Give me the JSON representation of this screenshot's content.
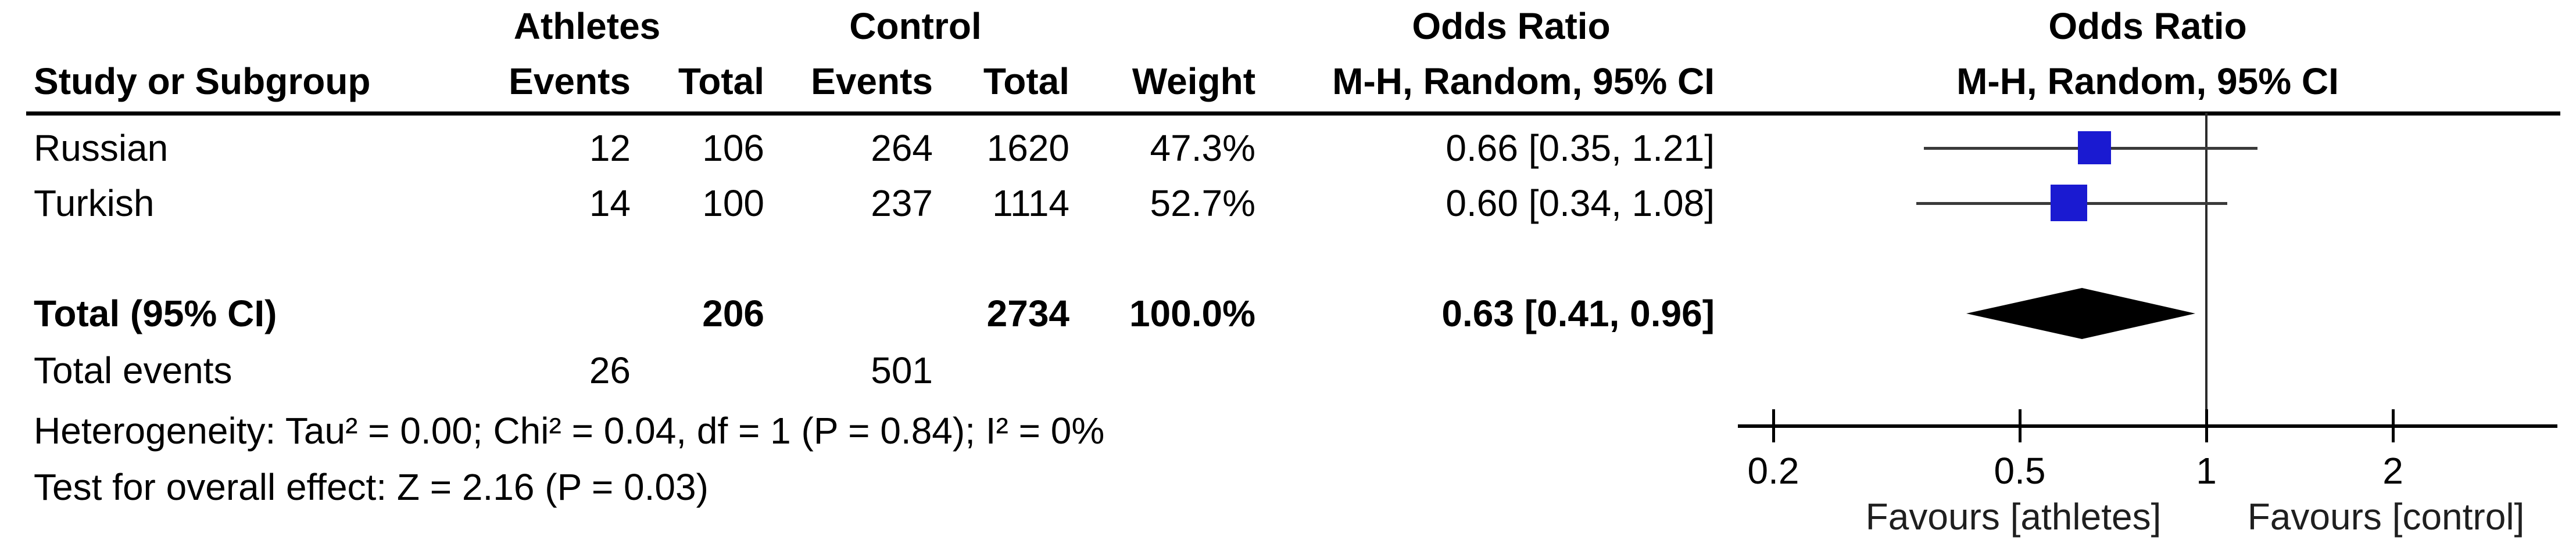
{
  "header": {
    "group1": "Athletes",
    "group2": "Control",
    "study_col": "Study or Subgroup",
    "g1_events_col": "Events",
    "g1_total_col": "Total",
    "g2_events_col": "Events",
    "g2_total_col": "Total",
    "weight_col": "Weight",
    "or_col_line1": "Odds Ratio",
    "or_col_line2": "M-H, Random, 95% CI",
    "graph_col_line1": "Odds Ratio",
    "graph_col_line2": "M-H, Random, 95% CI"
  },
  "rows": [
    {
      "study": "Russian",
      "g1_events": "12",
      "g1_total": "106",
      "g2_events": "264",
      "g2_total": "1620",
      "weight": "47.3%",
      "or_ci": "0.66 [0.35, 1.21]"
    },
    {
      "study": "Turkish",
      "g1_events": "14",
      "g1_total": "100",
      "g2_events": "237",
      "g2_total": "1114",
      "weight": "52.7%",
      "or_ci": "0.60 [0.34, 1.08]"
    }
  ],
  "total_row": {
    "label": "Total (95% CI)",
    "g1_total": "206",
    "g2_total": "2734",
    "weight": "100.0%",
    "or_ci": "0.63 [0.41, 0.96]"
  },
  "total_events_row": {
    "label": "Total events",
    "g1_events": "26",
    "g2_events": "501"
  },
  "footnotes": {
    "heterogeneity": "Heterogeneity: Tau² = 0.00; Chi² = 0.04, df = 1 (P = 0.84); I² = 0%",
    "overall_effect": "Test for overall effect: Z = 2.16 (P = 0.03)"
  },
  "chart_data": {
    "type": "forest",
    "effect_measure": "Odds Ratio",
    "method": "M-H, Random, 95% CI",
    "x_scale": "log",
    "axis_ticks": [
      {
        "value": 0.2,
        "label": "0.2"
      },
      {
        "value": 0.5,
        "label": "0.5"
      },
      {
        "value": 1,
        "label": "1"
      },
      {
        "value": 2,
        "label": "2"
      }
    ],
    "axis_range": [
      0.175,
      3.7
    ],
    "null_line": 1,
    "studies": [
      {
        "name": "Russian",
        "or": 0.66,
        "ci_low": 0.35,
        "ci_high": 1.21,
        "weight_pct": 47.3
      },
      {
        "name": "Turkish",
        "or": 0.6,
        "ci_low": 0.34,
        "ci_high": 1.08,
        "weight_pct": 52.7
      }
    ],
    "total": {
      "or": 0.63,
      "ci_low": 0.41,
      "ci_high": 0.96
    },
    "favours_left": "Favours [athletes]",
    "favours_right": "Favours [control]",
    "colors": {
      "square": "#1a1ad1",
      "ci_line": "#3a3a3a",
      "diamond": "#000000",
      "axis": "#000000"
    }
  }
}
